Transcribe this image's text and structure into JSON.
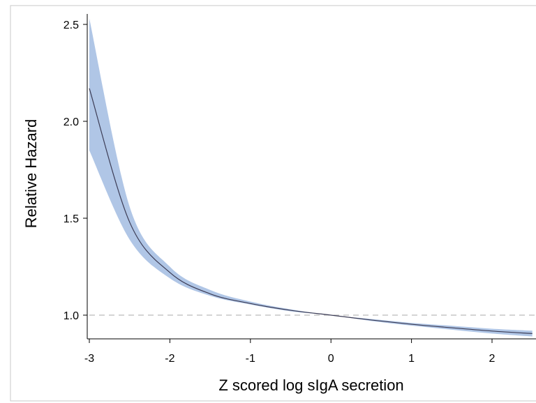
{
  "chart_data": {
    "type": "line",
    "title": "",
    "xlabel": "Z scored log sIgA secretion",
    "ylabel": "Relative Hazard",
    "xlim": [
      -3.05,
      2.55
    ],
    "ylim": [
      0.88,
      2.56
    ],
    "x_ticks": [
      -3,
      -2,
      -1,
      0,
      1,
      2
    ],
    "x_tick_labels": [
      "-3",
      "-2",
      "-1",
      "0",
      "1",
      "2"
    ],
    "y_ticks": [
      1.0,
      1.5,
      2.0,
      2.5
    ],
    "y_tick_labels": [
      "1.0",
      "1.5",
      "2.0",
      "2.5"
    ],
    "reference_line": {
      "y": 1.0,
      "style": "dashed",
      "color": "#bbbbbb"
    },
    "grid": false,
    "legend": "none",
    "colors": {
      "line": "#3c3c55",
      "band": "#b0c6e6",
      "axis": "#000000",
      "frame": "#c8c8c8"
    },
    "series": [
      {
        "x": [
          -3.0,
          -2.5,
          -2.0,
          -1.5,
          -1.0,
          -0.5,
          0.0,
          0.5,
          1.0,
          1.5,
          2.0,
          2.5
        ],
        "values": [
          2.17,
          1.48,
          1.22,
          1.11,
          1.06,
          1.025,
          1.0,
          0.975,
          0.953,
          0.935,
          0.918,
          0.905
        ],
        "lower": [
          1.85,
          1.39,
          1.19,
          1.1,
          1.055,
          1.02,
          1.0,
          0.97,
          0.946,
          0.925,
          0.905,
          0.89
        ],
        "upper": [
          2.53,
          1.56,
          1.25,
          1.13,
          1.07,
          1.03,
          1.0,
          0.98,
          0.96,
          0.945,
          0.93,
          0.92
        ]
      }
    ]
  }
}
